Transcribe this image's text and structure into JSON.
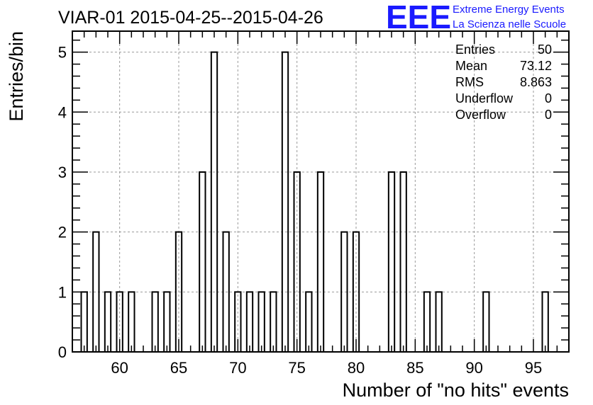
{
  "chart_data": {
    "type": "bar",
    "title": "VIAR-01 2015-04-25--2015-04-26",
    "xlabel": "Number of \"no hits\" events",
    "ylabel": "Entries/bin",
    "xlim": [
      56,
      98
    ],
    "ylim": [
      0,
      5.35
    ],
    "bin_width": 0.5,
    "x_ticks": [
      60,
      65,
      70,
      75,
      80,
      85,
      90,
      95
    ],
    "y_ticks": [
      0,
      1,
      2,
      3,
      4,
      5
    ],
    "grid": true,
    "bins": [
      {
        "x": 57,
        "count": 1
      },
      {
        "x": 58,
        "count": 2
      },
      {
        "x": 59,
        "count": 1
      },
      {
        "x": 60,
        "count": 1
      },
      {
        "x": 61,
        "count": 1
      },
      {
        "x": 63,
        "count": 1
      },
      {
        "x": 64,
        "count": 1
      },
      {
        "x": 65,
        "count": 2
      },
      {
        "x": 67,
        "count": 3
      },
      {
        "x": 68,
        "count": 5
      },
      {
        "x": 69,
        "count": 2
      },
      {
        "x": 70,
        "count": 1
      },
      {
        "x": 71,
        "count": 1
      },
      {
        "x": 72,
        "count": 1
      },
      {
        "x": 73,
        "count": 1
      },
      {
        "x": 74,
        "count": 5
      },
      {
        "x": 75,
        "count": 3
      },
      {
        "x": 76,
        "count": 1
      },
      {
        "x": 77,
        "count": 3
      },
      {
        "x": 79,
        "count": 2
      },
      {
        "x": 80,
        "count": 2
      },
      {
        "x": 83,
        "count": 3
      },
      {
        "x": 84,
        "count": 3
      },
      {
        "x": 86,
        "count": 1
      },
      {
        "x": 87,
        "count": 1
      },
      {
        "x": 91,
        "count": 1
      },
      {
        "x": 96,
        "count": 1
      }
    ],
    "stats": [
      {
        "label": "Entries",
        "value": "50"
      },
      {
        "label": "Mean",
        "value": "73.12"
      },
      {
        "label": "RMS",
        "value": "8.863"
      },
      {
        "label": "Underflow",
        "value": "0"
      },
      {
        "label": "Overflow",
        "value": "0"
      }
    ],
    "stats_placement": "top-right"
  },
  "logo": {
    "mark": "EEE",
    "line1": "Extreme Energy Events",
    "line2": "La Scienza nelle Scuole",
    "color": "#1a1aff"
  }
}
